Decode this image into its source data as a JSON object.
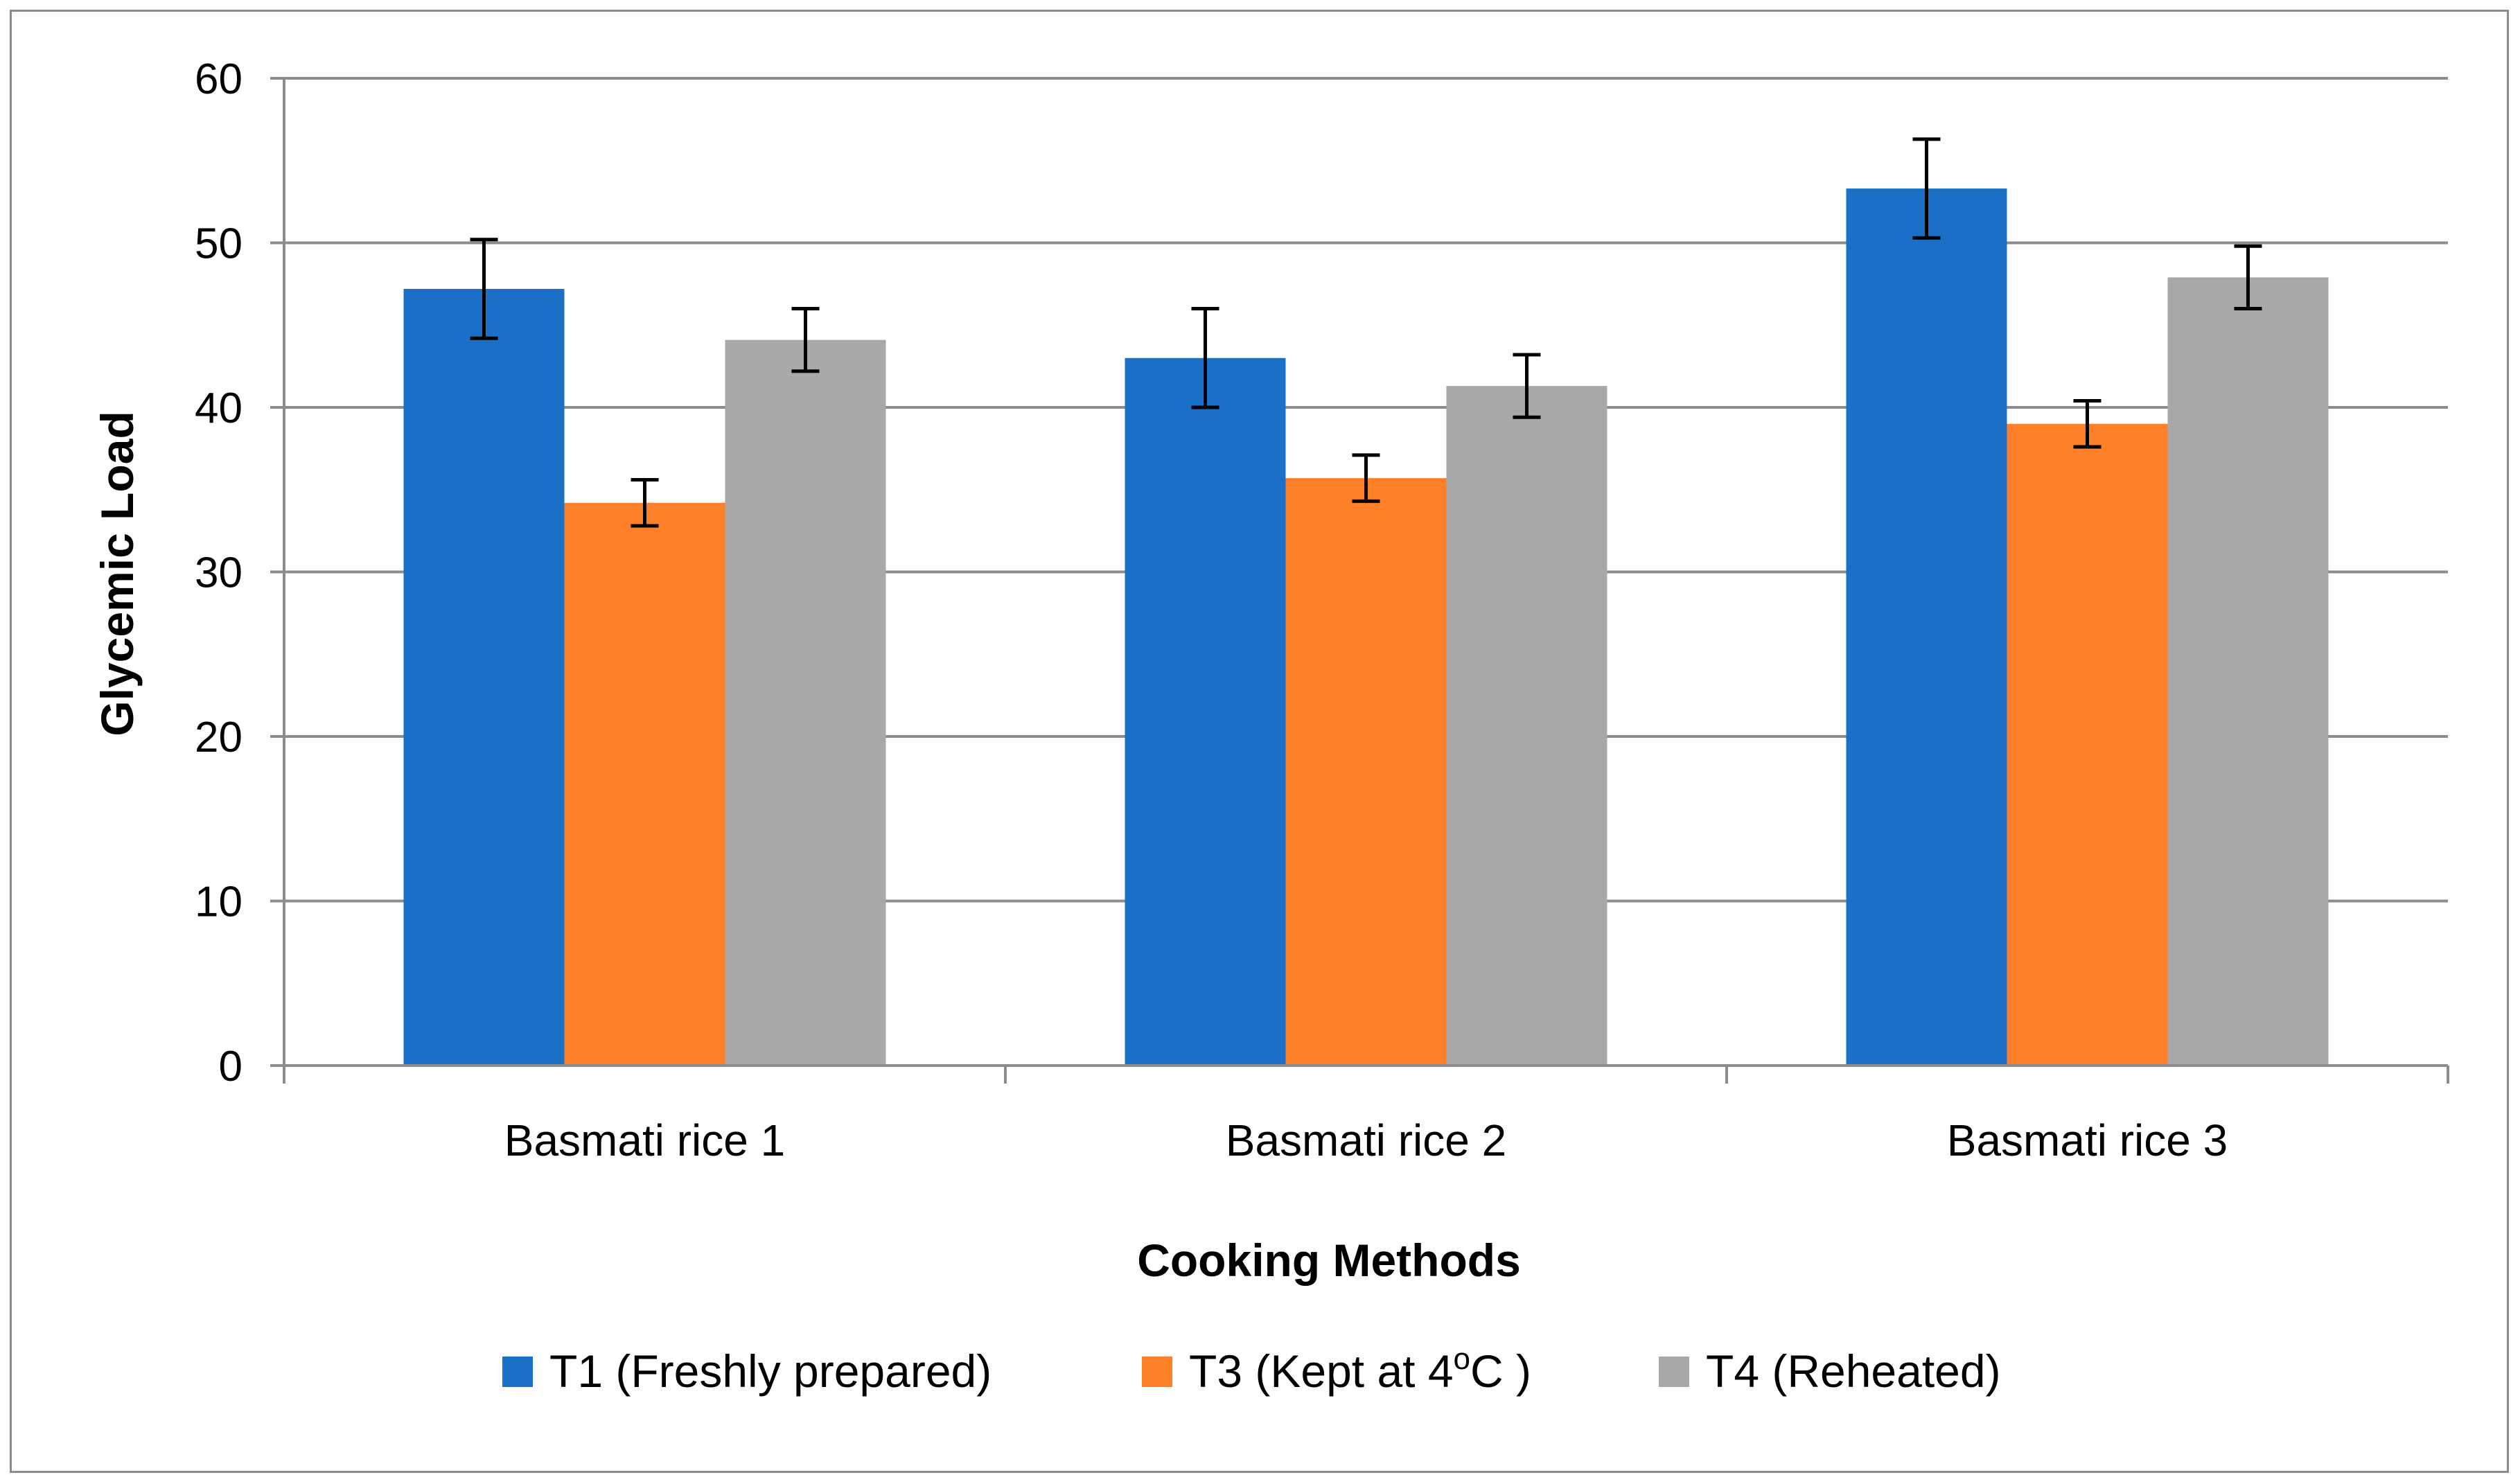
{
  "chart_data": {
    "type": "bar",
    "title": "",
    "xlabel": "Cooking Methods",
    "ylabel": "Glycemic Load",
    "ylim": [
      0,
      60
    ],
    "yticks": [
      0,
      10,
      20,
      30,
      40,
      50,
      60
    ],
    "ytick_labels": [
      "0",
      "10",
      "20",
      "30",
      "40",
      "50",
      "60"
    ],
    "grid": true,
    "legend_position": "bottom",
    "categories": [
      "Basmati rice 1",
      "Basmati rice 2",
      "Basmati rice 3"
    ],
    "series": [
      {
        "name": "T1 (Freshly prepared)",
        "color": "#1a70c7",
        "values": [
          47.2,
          43.0,
          53.3
        ],
        "errors": [
          3.0,
          3.0,
          3.0
        ]
      },
      {
        "name": "T3 (Kept at 4",
        "name_superscript": "o",
        "name_suffix": "C )",
        "color": "#fd7f28",
        "values": [
          34.2,
          35.7,
          39.0
        ],
        "errors": [
          1.4,
          1.4,
          1.4
        ]
      },
      {
        "name": "T4 (Reheated)",
        "color": "#a8a8a8",
        "values": [
          44.1,
          41.3,
          47.9
        ],
        "errors": [
          1.9,
          1.9,
          1.9
        ]
      }
    ]
  }
}
